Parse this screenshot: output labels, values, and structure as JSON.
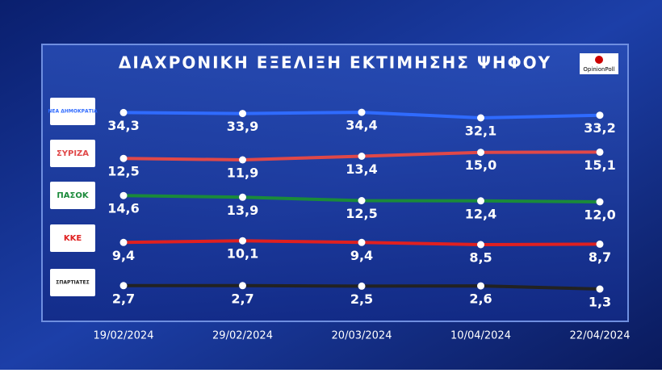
{
  "chart_data": {
    "type": "line",
    "title": "ΔΙΑΧΡΟΝΙΚΗ ΕΞΕΛΙΞΗ ΕΚΤΙΜΗΣΗΣ ΨΗΦΟΥ",
    "source": "OpinionPoll",
    "x": [
      "19/02/2024",
      "29/02/2024",
      "20/03/2024",
      "10/04/2024",
      "22/04/2024"
    ],
    "series": [
      {
        "name": "ΝΕΑ ΔΗΜΟΚΡΑΤΙΑ",
        "color": "#2f6bff",
        "values": [
          34.3,
          33.9,
          34.4,
          32.1,
          33.2
        ],
        "value_labels": [
          "34,3",
          "33,9",
          "34,4",
          "32,1",
          "33,2"
        ]
      },
      {
        "name": "ΣΥΡΙΖΑ",
        "color": "#e04848",
        "values": [
          12.5,
          11.9,
          13.4,
          15.0,
          15.1
        ],
        "value_labels": [
          "12,5",
          "11,9",
          "13,4",
          "15,0",
          "15,1"
        ]
      },
      {
        "name": "ΠΑΣΟΚ",
        "color": "#1a8a3a",
        "values": [
          14.6,
          13.9,
          12.5,
          12.4,
          12.0
        ],
        "value_labels": [
          "14,6",
          "13,9",
          "12,5",
          "12,4",
          "12,0"
        ]
      },
      {
        "name": "ΚΚΕ",
        "color": "#e02020",
        "values": [
          9.4,
          10.1,
          9.4,
          8.5,
          8.7
        ],
        "value_labels": [
          "9,4",
          "10,1",
          "9,4",
          "8,5",
          "8,7"
        ]
      },
      {
        "name": "ΣΠΑΡΤΙΑΤΕΣ",
        "color": "#222222",
        "values": [
          2.7,
          2.7,
          2.5,
          2.6,
          1.3
        ],
        "value_labels": [
          "2,7",
          "2,7",
          "2,5",
          "2,6",
          "1,3"
        ]
      }
    ]
  }
}
